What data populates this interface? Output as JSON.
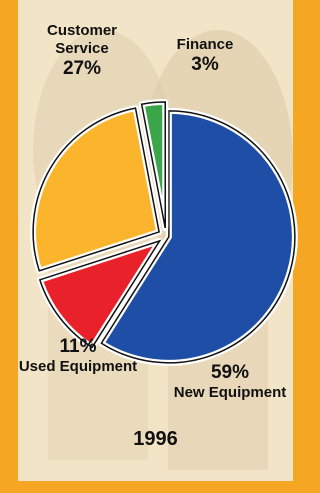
{
  "chart_data": {
    "type": "pie",
    "title": "1996",
    "categories": [
      "New Equipment",
      "Used Equipment",
      "Customer Service",
      "Finance"
    ],
    "values": [
      59,
      11,
      27,
      3
    ],
    "value_labels": [
      "59%",
      "11%",
      "27%",
      "3%"
    ],
    "colors": [
      "#1f4ea6",
      "#e8212b",
      "#fbb52c",
      "#3ba54a"
    ]
  }
}
